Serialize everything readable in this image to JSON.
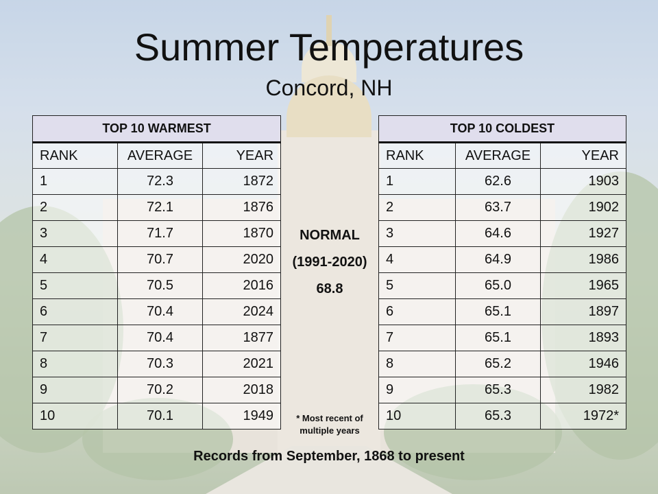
{
  "title": "Summer Temperatures",
  "subtitle": "Concord, NH",
  "warmest": {
    "header": "TOP 10 WARMEST",
    "columns": [
      "RANK",
      "AVERAGE",
      "YEAR"
    ],
    "rows": [
      {
        "rank": "1",
        "average": "72.3",
        "year": "1872"
      },
      {
        "rank": "2",
        "average": "72.1",
        "year": "1876"
      },
      {
        "rank": "3",
        "average": "71.7",
        "year": "1870"
      },
      {
        "rank": "4",
        "average": "70.7",
        "year": "2020"
      },
      {
        "rank": "5",
        "average": "70.5",
        "year": "2016"
      },
      {
        "rank": "6",
        "average": "70.4",
        "year": "2024"
      },
      {
        "rank": "7",
        "average": "70.4",
        "year": "1877"
      },
      {
        "rank": "8",
        "average": "70.3",
        "year": "2021"
      },
      {
        "rank": "9",
        "average": "70.2",
        "year": "2018"
      },
      {
        "rank": "10",
        "average": "70.1",
        "year": "1949"
      }
    ]
  },
  "coldest": {
    "header": "TOP 10 COLDEST",
    "columns": [
      "RANK",
      "AVERAGE",
      "YEAR"
    ],
    "rows": [
      {
        "rank": "1",
        "average": "62.6",
        "year": "1903"
      },
      {
        "rank": "2",
        "average": "63.7",
        "year": "1902"
      },
      {
        "rank": "3",
        "average": "64.6",
        "year": "1927"
      },
      {
        "rank": "4",
        "average": "64.9",
        "year": "1986"
      },
      {
        "rank": "5",
        "average": "65.0",
        "year": "1965"
      },
      {
        "rank": "6",
        "average": "65.1",
        "year": "1897"
      },
      {
        "rank": "7",
        "average": "65.1",
        "year": "1893"
      },
      {
        "rank": "8",
        "average": "65.2",
        "year": "1946"
      },
      {
        "rank": "9",
        "average": "65.3",
        "year": "1982"
      },
      {
        "rank": "10",
        "average": "65.3",
        "year": "1972*"
      }
    ]
  },
  "normal": {
    "label": "NORMAL",
    "period": "(1991-2020)",
    "value": "68.8"
  },
  "note": "* Most recent of multiple years",
  "footer": "Records from September, 1868 to present"
}
